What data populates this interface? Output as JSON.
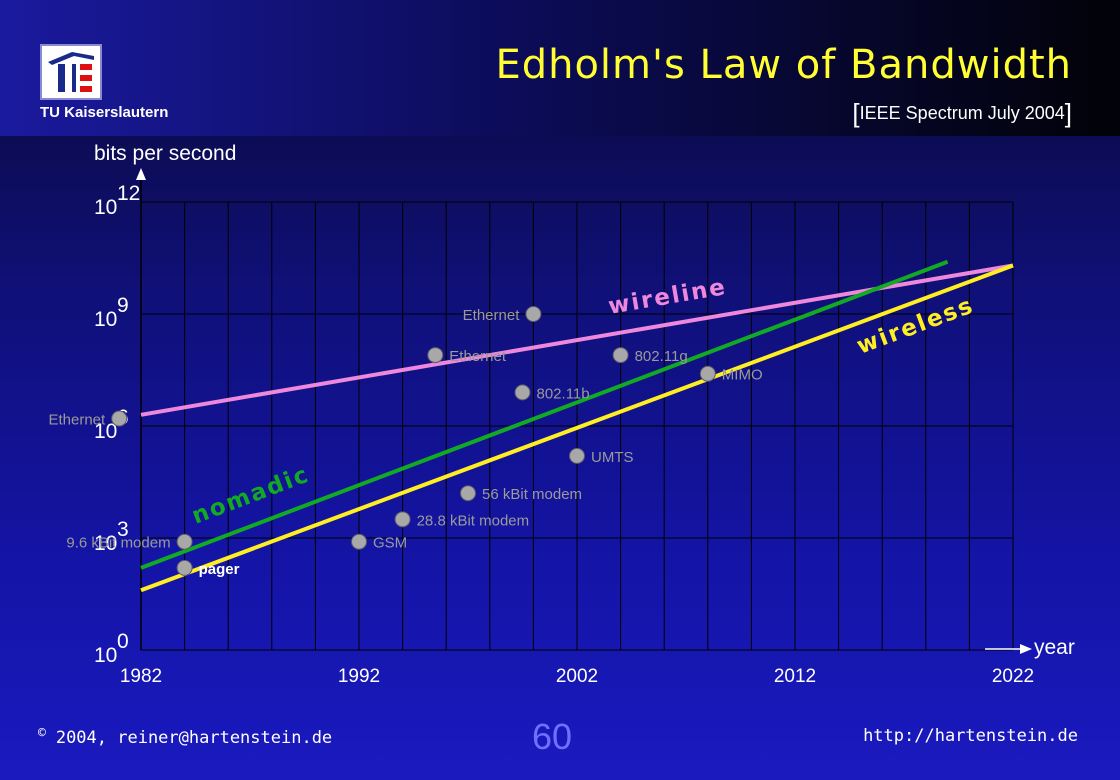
{
  "header": {
    "institution": "TU Kaiserslautern",
    "title": "Edholm's Law of Bandwidth",
    "source_open": "[",
    "source": "IEEE Spectrum July 2004",
    "source_close": "]"
  },
  "chart_data": {
    "type": "line",
    "title": "Edholm's Law of Bandwidth",
    "ylabel": "bits per second",
    "xlabel": "year",
    "xlim": [
      1982,
      2022
    ],
    "ylim_exponent": [
      0,
      12
    ],
    "y_scale": "log10",
    "grid": true,
    "x_ticks": [
      "1982",
      "1992",
      "2002",
      "2012",
      "2022"
    ],
    "y_ticks": [
      {
        "base": "10",
        "exp": "0",
        "exponent": 0
      },
      {
        "base": "10",
        "exp": "3",
        "exponent": 3
      },
      {
        "base": "10",
        "exp": "6",
        "exponent": 6
      },
      {
        "base": "10",
        "exp": "9",
        "exponent": 9
      },
      {
        "base": "10",
        "exp": "12",
        "exponent": 12
      }
    ],
    "series": [
      {
        "name": "wireline",
        "color": "#ee88dd",
        "x": [
          1982,
          2022
        ],
        "y_exponent": [
          6.3,
          10.3
        ]
      },
      {
        "name": "nomadic",
        "color": "#11aa22",
        "x": [
          1982,
          2019
        ],
        "y_exponent": [
          2.2,
          10.4
        ]
      },
      {
        "name": "wireless",
        "color": "#ffee22",
        "x": [
          1982,
          2022
        ],
        "y_exponent": [
          1.6,
          10.3
        ]
      }
    ],
    "points": [
      {
        "label": "Ethernet",
        "year": 1981,
        "exponent": 6.2,
        "label_side": "left"
      },
      {
        "label": "9.6 kBit modem",
        "year": 1984,
        "exponent": 2.9,
        "label_side": "left"
      },
      {
        "label": "pager",
        "year": 1984,
        "exponent": 2.2,
        "label_side": "right"
      },
      {
        "label": "GSM",
        "year": 1992,
        "exponent": 2.9,
        "label_side": "right"
      },
      {
        "label": "28.8 kBit modem",
        "year": 1994,
        "exponent": 3.5,
        "label_side": "right"
      },
      {
        "label": "Ethernet",
        "year": 1995.5,
        "exponent": 7.9,
        "label_side": "right"
      },
      {
        "label": "56 kBit modem",
        "year": 1997,
        "exponent": 4.2,
        "label_side": "right"
      },
      {
        "label": "Ethernet",
        "year": 2000,
        "exponent": 9.0,
        "label_side": "left"
      },
      {
        "label": "802.11b",
        "year": 1999.5,
        "exponent": 6.9,
        "label_side": "right"
      },
      {
        "label": "UMTS",
        "year": 2002,
        "exponent": 5.2,
        "label_side": "right"
      },
      {
        "label": "802.11g",
        "year": 2004,
        "exponent": 7.9,
        "label_side": "right"
      },
      {
        "label": "MIMO",
        "year": 2008,
        "exponent": 7.4,
        "label_side": "right"
      }
    ]
  },
  "footer": {
    "copyright_symbol": "©",
    "copyright_text": "2004, reiner@hartenstein.de",
    "page_number": "60",
    "url": "http://hartenstein.de"
  }
}
